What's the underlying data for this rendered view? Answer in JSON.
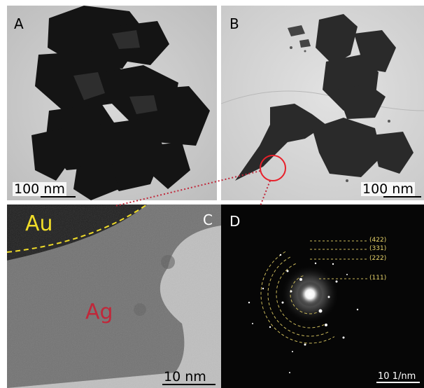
{
  "panels": {
    "A": {
      "label": "A",
      "scale_bar": "100 nm"
    },
    "B": {
      "label": "B",
      "scale_bar": "100 nm"
    },
    "C": {
      "label": "C",
      "scale_bar": "10 nm",
      "region_upper": "Au",
      "region_lower": "Ag"
    },
    "D": {
      "label": "D",
      "scale_bar": "10 1/nm",
      "rings": [
        "(422)",
        "(331)",
        "(222)",
        "(111)"
      ]
    }
  },
  "colors": {
    "au_label": "#f0dc28",
    "ag_label": "#c0283a",
    "boundary": "#f0dc28",
    "highlight_circle": "#e8202a",
    "ring_labels": "#e8d46a"
  }
}
